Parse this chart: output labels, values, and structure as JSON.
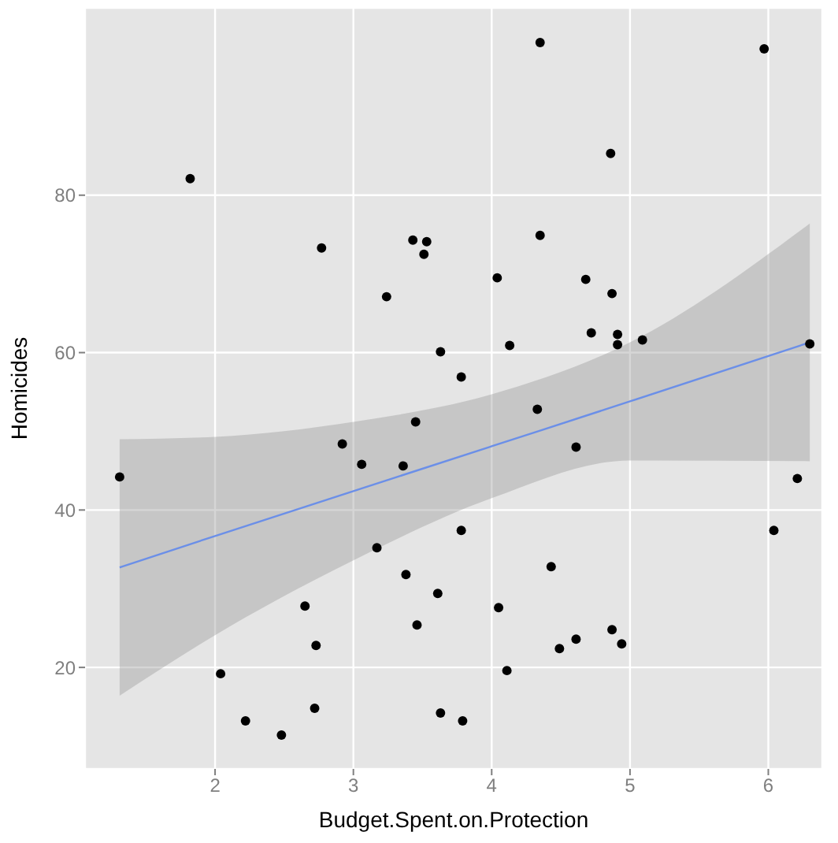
{
  "chart_data": {
    "type": "scatter",
    "xlabel": "Budget.Spent.on.Protection",
    "ylabel": "Homicides",
    "xlim": [
      1.06,
      6.39
    ],
    "xticks": [
      2,
      3,
      4,
      5,
      6
    ],
    "ylim": [
      7.1,
      103.8
    ],
    "yticks": [
      20,
      40,
      60,
      80
    ],
    "grid": true,
    "marker": "circle",
    "series": [
      {
        "color": "#000000",
        "x": [
          1.82,
          2.77,
          3.43,
          3.53,
          3.51,
          3.24,
          3.63,
          4.35,
          5.97,
          4.86,
          4.35,
          4.04,
          4.68,
          4.87,
          4.72,
          4.91,
          4.91,
          5.09,
          4.13,
          3.78,
          6.3,
          1.31,
          2.92,
          3.06,
          3.36,
          3.45,
          3.17,
          3.38,
          3.61,
          3.46,
          2.65,
          2.73,
          2.04,
          2.22,
          2.48,
          2.72,
          3.63,
          4.33,
          4.61,
          6.21,
          6.04,
          3.78,
          4.43,
          4.05,
          4.61,
          4.49,
          4.87,
          4.94,
          4.11,
          3.79
        ],
        "values": [
          82.1,
          73.3,
          74.3,
          74.1,
          72.5,
          67.1,
          60.1,
          99.4,
          98.6,
          85.3,
          74.9,
          69.5,
          69.3,
          67.5,
          62.5,
          62.3,
          61.0,
          61.6,
          60.9,
          56.9,
          61.1,
          44.2,
          48.4,
          45.8,
          45.6,
          51.2,
          35.2,
          31.8,
          29.4,
          25.4,
          27.8,
          22.8,
          19.2,
          13.2,
          11.4,
          14.8,
          14.2,
          52.8,
          48.0,
          44.0,
          37.4,
          37.4,
          32.8,
          27.6,
          23.6,
          22.4,
          24.8,
          23.0,
          19.6,
          13.2
        ]
      },
      {
        "type": "line",
        "marker": "none",
        "color": "#6b8fe8",
        "x": [
          1.31,
          2,
          3,
          4,
          5,
          6.3
        ],
        "values": [
          32.7,
          36.7,
          42.4,
          48.1,
          53.8,
          61.3
        ],
        "lower": [
          16.4,
          24.1,
          33.6,
          41.5,
          46.3,
          46.2
        ],
        "upper": [
          49.0,
          49.3,
          51.2,
          54.7,
          61.3,
          76.4
        ]
      }
    ]
  }
}
